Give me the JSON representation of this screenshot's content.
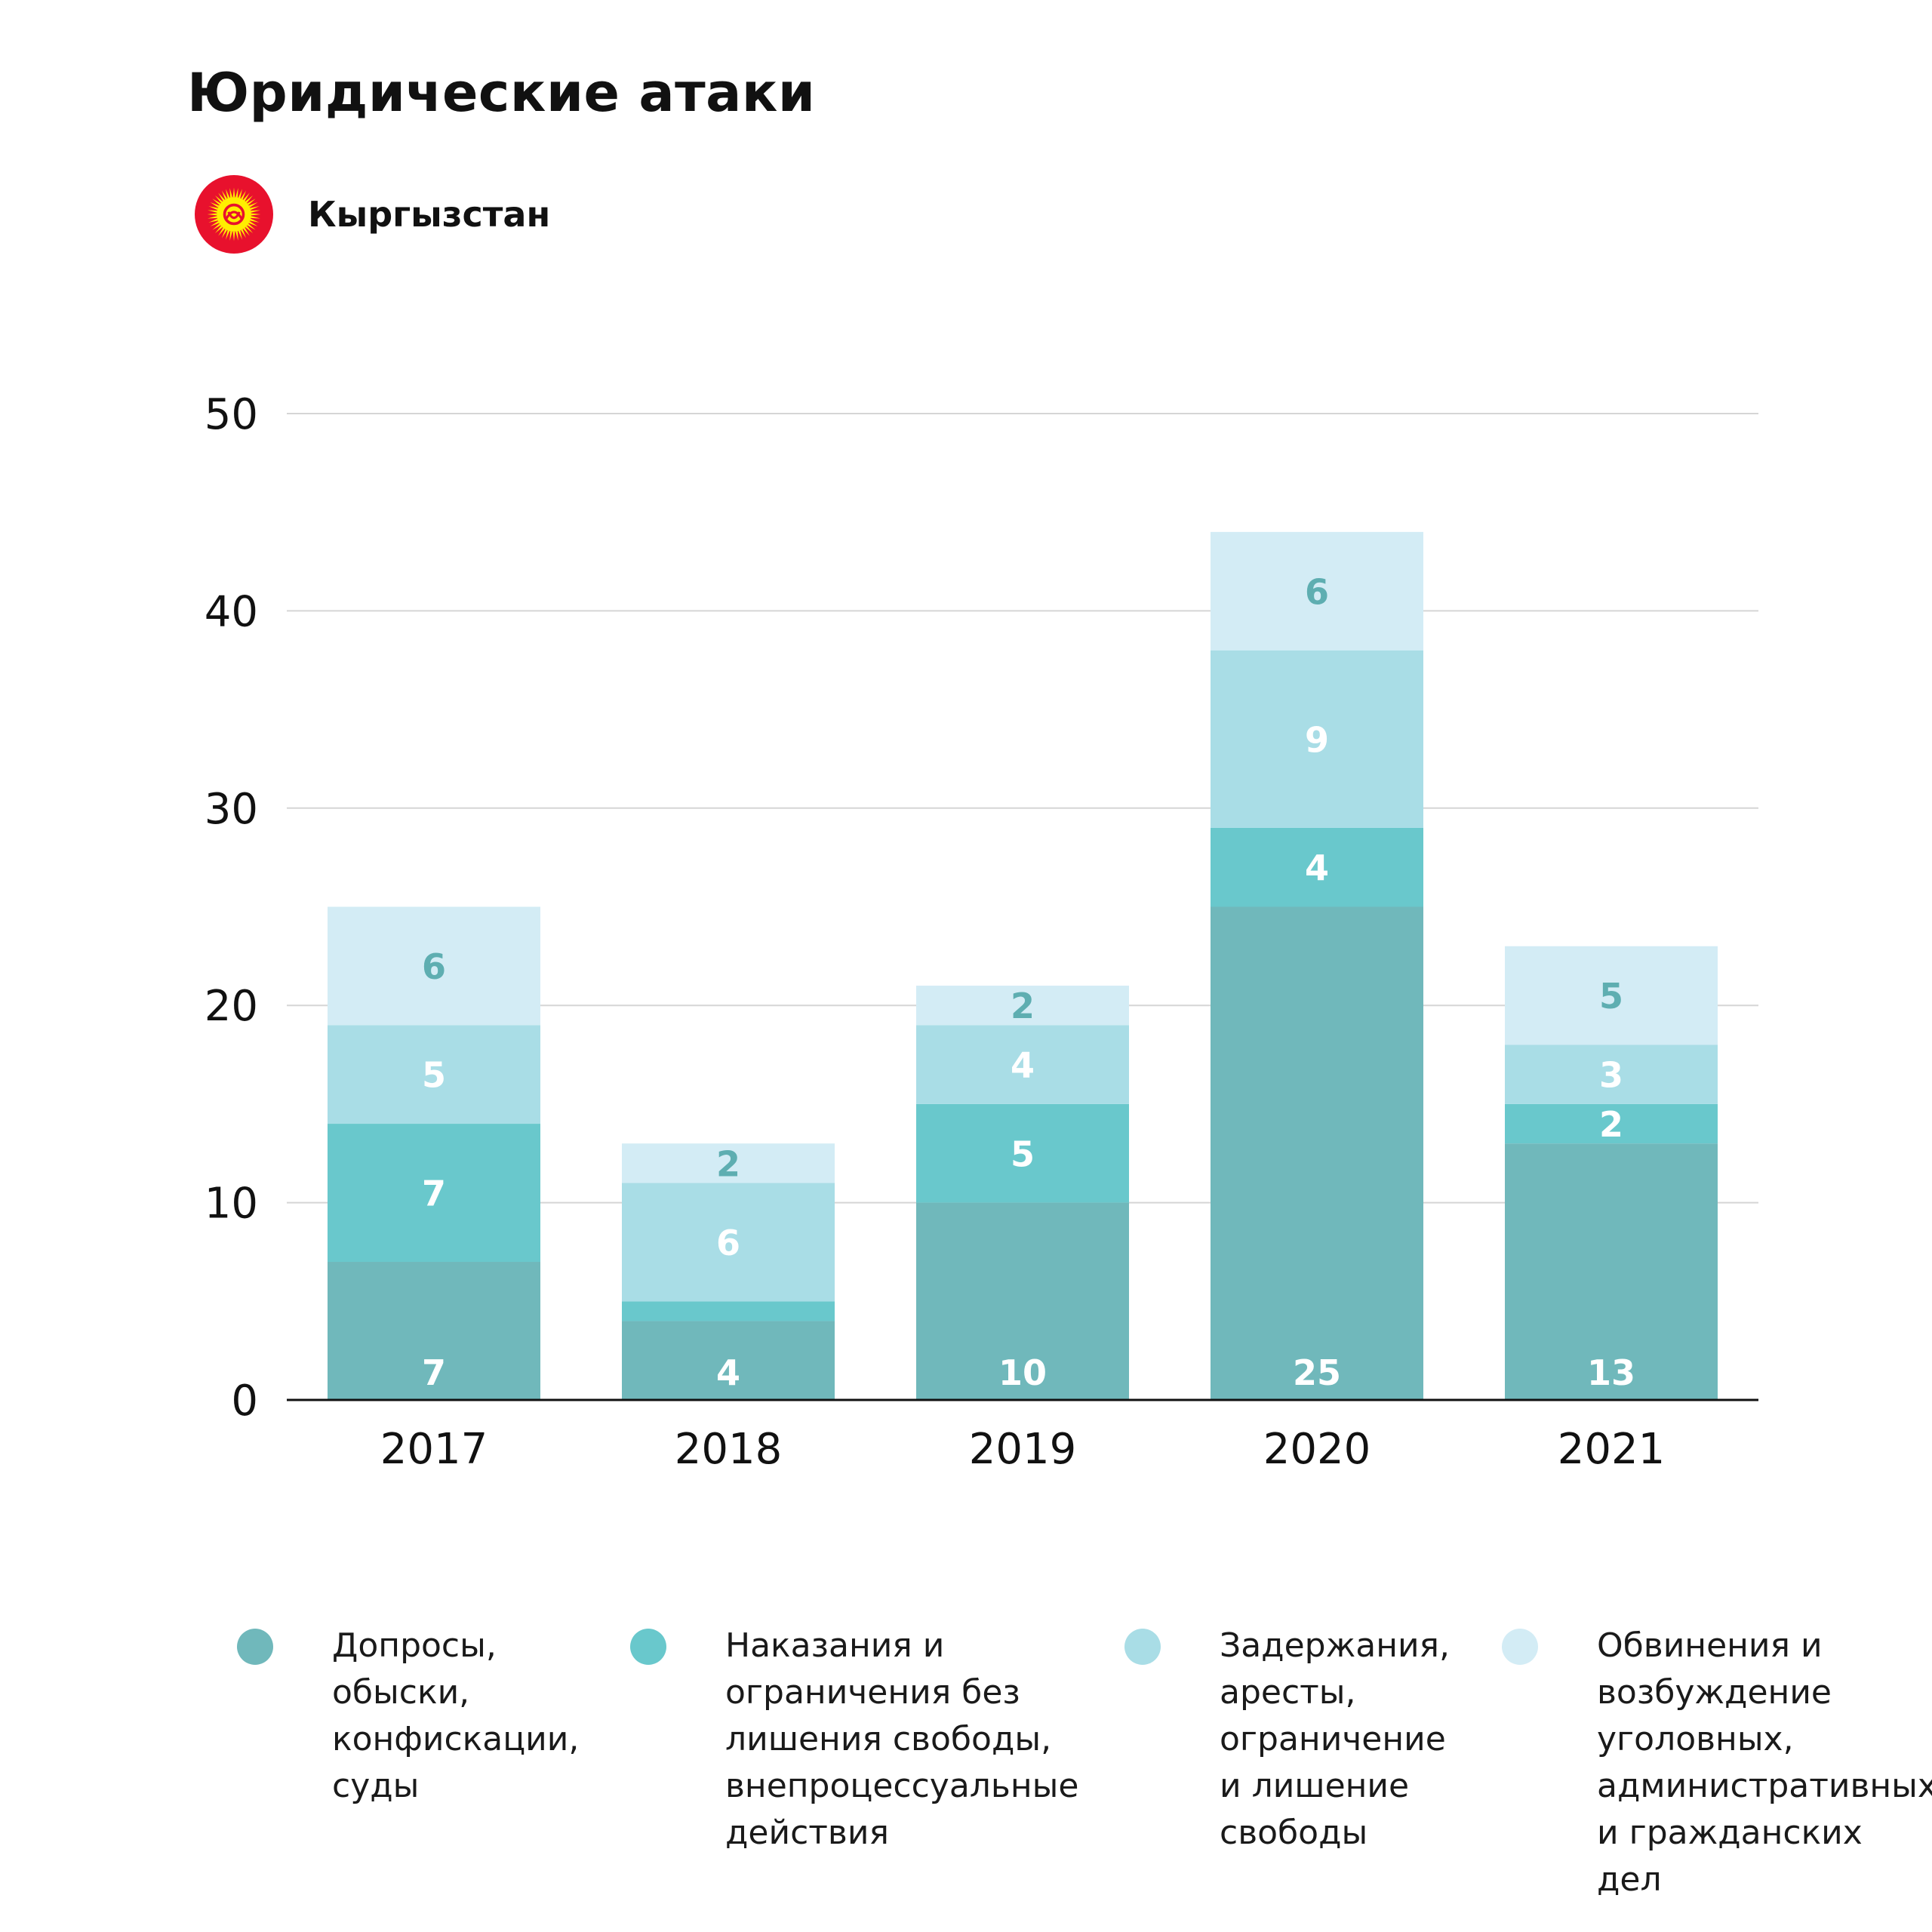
{
  "title": "Юридические атаки",
  "country": {
    "name": "Кыргызстан",
    "flag_icon": "kyrgyzstan-flag-icon",
    "flag_colors": {
      "field": "#e8112d",
      "sun": "#ffef00"
    }
  },
  "chart_data": {
    "type": "bar",
    "stacked": true,
    "categories": [
      "2017",
      "2018",
      "2019",
      "2020",
      "2021"
    ],
    "ylim": [
      0,
      50
    ],
    "yticks": [
      "0",
      "10",
      "20",
      "30",
      "40",
      "50"
    ],
    "grid": true,
    "legend_position": "bottom",
    "series": [
      {
        "name": "Допросы,\nобыски,\nконфискации,\nсуды",
        "color": "#70b8bb",
        "values": [
          7,
          4,
          10,
          25,
          13
        ],
        "labels": [
          "7",
          "4",
          "10",
          "25",
          "13"
        ],
        "label_color": "#ffffff"
      },
      {
        "name": "Наказания и\nограничения без\nлишения свободы,\nвнепроцессуальные\nдействия",
        "color": "#69c8cc",
        "values": [
          7,
          1,
          5,
          4,
          2
        ],
        "labels": [
          "7",
          "",
          "5",
          "4",
          "2"
        ],
        "label_color": "#ffffff"
      },
      {
        "name": "Задержания,\nаресты,\nограничение\nи лишение\nсвободы",
        "color": "#a9dde6",
        "values": [
          5,
          6,
          4,
          9,
          3
        ],
        "labels": [
          "5",
          "6",
          "4",
          "9",
          "3"
        ],
        "label_color": "#ffffff"
      },
      {
        "name": "Обвинения и\nвозбуждение\nуголовных,\nадминистративных\nи гражданских дел",
        "color": "#d3ecf5",
        "values": [
          6,
          2,
          2,
          6,
          5
        ],
        "labels": [
          "6",
          "2",
          "2",
          "6",
          "5"
        ],
        "label_color": "#5eaeb1"
      }
    ]
  }
}
